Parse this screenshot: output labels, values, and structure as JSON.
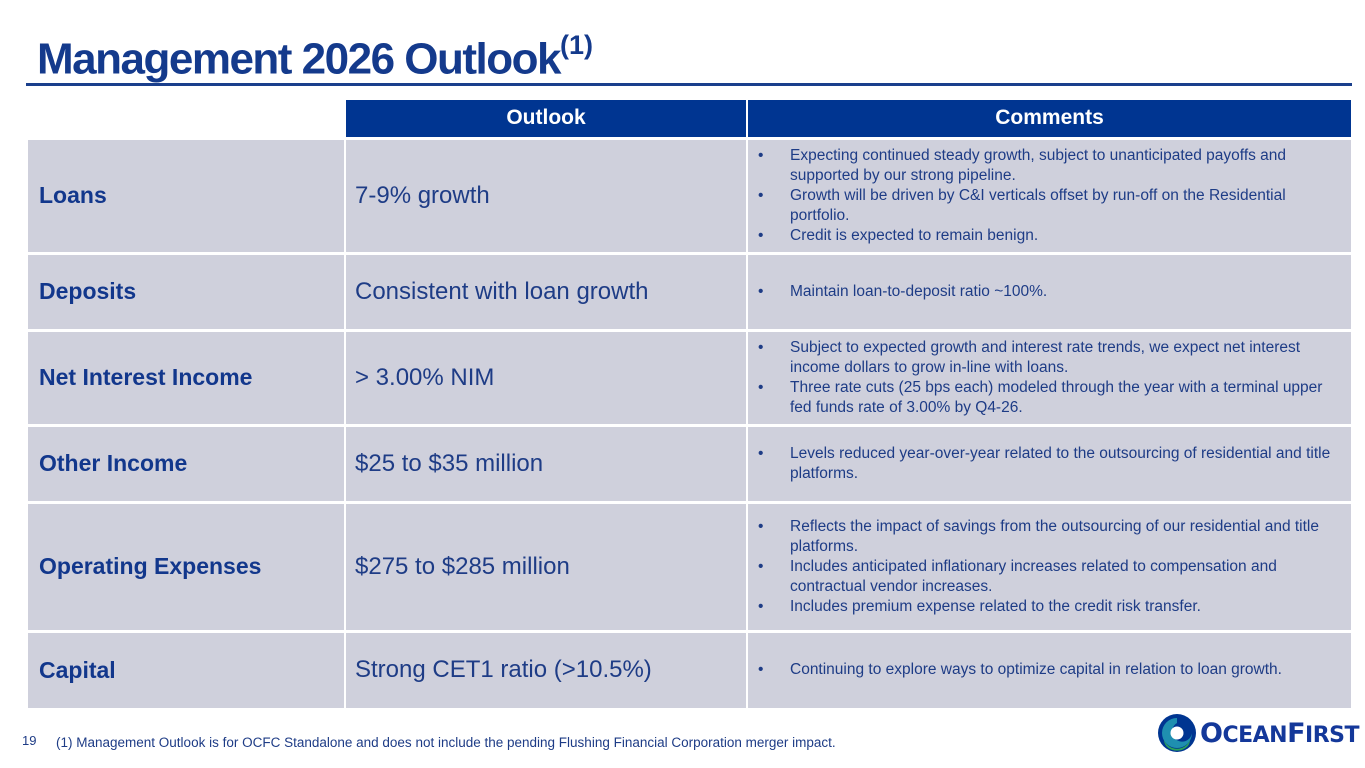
{
  "slide": {
    "title": "Management 2026 Outlook",
    "title_note": "(1)",
    "page_number": "19",
    "footnote": "(1)  Management Outlook is for OCFC Standalone and does not include the pending Flushing Financial Corporation merger impact."
  },
  "table": {
    "headers": {
      "outlook": "Outlook",
      "comments": "Comments"
    },
    "rows": [
      {
        "category": "Loans",
        "outlook": "7-9% growth",
        "comments": [
          "Expecting continued steady growth, subject to unanticipated payoffs and supported by our strong pipeline.",
          "Growth will be driven by C&I verticals offset by run-off on the Residential portfolio.",
          "Credit is expected to remain benign."
        ]
      },
      {
        "category": "Deposits",
        "outlook": "Consistent with loan growth",
        "comments": [
          "Maintain loan-to-deposit ratio ~100%."
        ]
      },
      {
        "category": "Net Interest Income",
        "outlook": "> 3.00% NIM",
        "comments": [
          "Subject to expected growth and interest rate trends, we expect net interest income dollars to grow in-line with loans.",
          "Three rate cuts (25 bps each) modeled through the year with a terminal upper fed funds rate of 3.00% by Q4-26."
        ]
      },
      {
        "category": "Other Income",
        "outlook": "$25 to $35 million",
        "comments": [
          "Levels reduced year-over-year related to the outsourcing of residential and title platforms."
        ]
      },
      {
        "category": "Operating Expenses",
        "outlook": "$275 to $285 million",
        "comments": [
          "Reflects the impact of savings from the outsourcing of our residential and title platforms.",
          "Includes anticipated inflationary increases related to compensation and contractual vendor increases.",
          "Includes premium expense related to the credit risk transfer."
        ]
      },
      {
        "category": "Capital",
        "outlook": "Strong CET1 ratio (>10.5%)",
        "comments": [
          "Continuing to explore ways to optimize capital in relation to loan growth."
        ]
      }
    ]
  },
  "brand": {
    "logo_icon": "oceanfirst-wave-icon",
    "name_first_initial": "O",
    "name_first_rest": "CEAN",
    "name_second_initial": "F",
    "name_second_rest": "IRST",
    "colors": {
      "primary": "#003591",
      "accent": "#2aa35a",
      "teal": "#1f8fb0"
    }
  }
}
